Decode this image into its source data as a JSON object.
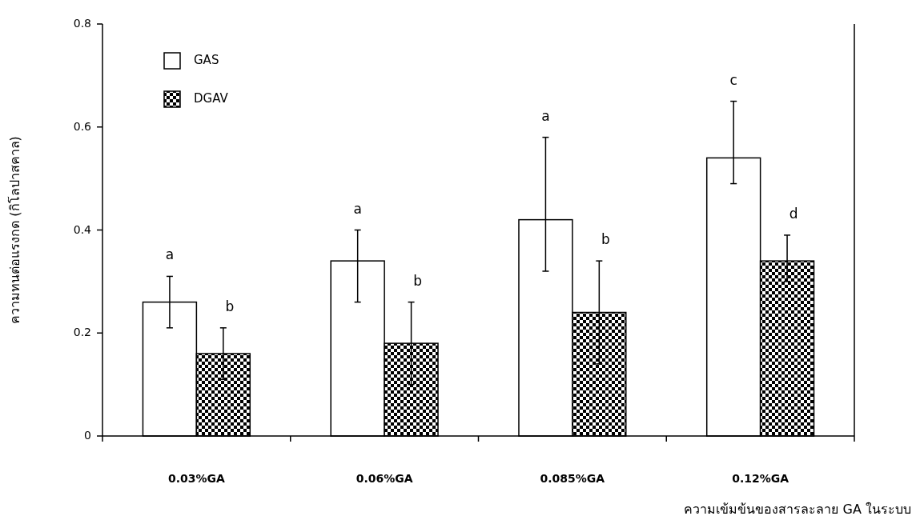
{
  "chart_data": {
    "type": "bar",
    "xlabel": "ความเข้มข้นของสารละลาย GA ในระบบ",
    "ylabel": "ความทนต่อแรงกด (กิโลปาสคาล)",
    "categories": [
      "0.03%GA",
      "0.06%GA",
      "0.085%GA",
      "0.12%GA"
    ],
    "series": [
      {
        "name": "GAS",
        "color": "#ffffff",
        "values": [
          0.26,
          0.34,
          0.42,
          0.54
        ],
        "errors": [
          [
            0.21,
            0.31
          ],
          [
            0.26,
            0.4
          ],
          [
            0.32,
            0.58
          ],
          [
            0.49,
            0.65
          ]
        ]
      },
      {
        "name": "DGAV",
        "color": "#000000",
        "values": [
          0.16,
          0.18,
          0.24,
          0.34
        ],
        "errors": [
          [
            0.11,
            0.21
          ],
          [
            0.1,
            0.26
          ],
          [
            0.14,
            0.34
          ],
          [
            0.3,
            0.39
          ]
        ]
      }
    ],
    "ylim": [
      0,
      0.8
    ],
    "yticks": [
      0,
      0.2,
      0.4,
      0.6,
      0.8
    ],
    "grid": false,
    "legend": "top left",
    "annotations": [
      "a",
      "b",
      "a",
      "b",
      "a",
      "b",
      "c",
      "d"
    ]
  }
}
